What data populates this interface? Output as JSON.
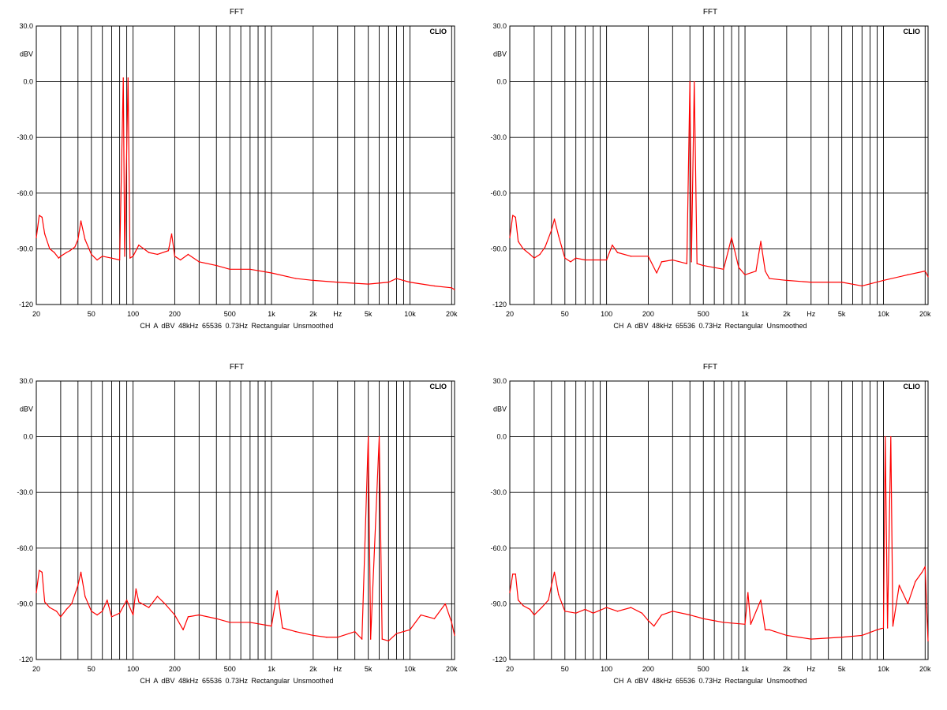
{
  "chart_data": [
    {
      "type": "line",
      "title": "FFT",
      "brand": "CLIO",
      "ylabel": "dBV",
      "xlabel": "Hz",
      "x_scale": "log",
      "xlim": [
        20,
        21000
      ],
      "ylim": [
        -120,
        30
      ],
      "y_ticks": [
        "30.0",
        "0.0",
        "-30.0",
        "-60.0",
        "-90.0",
        "-120"
      ],
      "x_ticks": [
        "20",
        "50",
        "100",
        "200",
        "500",
        "1k",
        "2k",
        "5k",
        "10k",
        "20k"
      ],
      "grid": true,
      "line_color": "#ff0000",
      "settings": [
        "CH A",
        "dBV",
        "48kHz",
        "65536",
        "0.73Hz",
        "Rectangular",
        "Unsmoothed"
      ],
      "series": [
        {
          "points": [
            [
              20,
              -84
            ],
            [
              21,
              -72
            ],
            [
              22,
              -73
            ],
            [
              23,
              -82
            ],
            [
              25,
              -90
            ],
            [
              27,
              -92
            ],
            [
              29,
              -95
            ],
            [
              30,
              -94
            ],
            [
              33,
              -92
            ],
            [
              35,
              -91
            ],
            [
              38,
              -89
            ],
            [
              40,
              -85
            ],
            [
              42,
              -75
            ],
            [
              45,
              -85
            ],
            [
              50,
              -93
            ],
            [
              55,
              -96
            ],
            [
              60,
              -94
            ],
            [
              70,
              -95
            ],
            [
              80,
              -96
            ],
            [
              85,
              2
            ],
            [
              87,
              -94
            ],
            [
              92,
              2
            ],
            [
              95,
              -95
            ],
            [
              100,
              -94
            ],
            [
              110,
              -88
            ],
            [
              130,
              -92
            ],
            [
              150,
              -93
            ],
            [
              180,
              -91
            ],
            [
              190,
              -82
            ],
            [
              200,
              -94
            ],
            [
              220,
              -96
            ],
            [
              250,
              -93
            ],
            [
              300,
              -97
            ],
            [
              400,
              -99
            ],
            [
              500,
              -101
            ],
            [
              700,
              -101
            ],
            [
              1000,
              -103
            ],
            [
              1500,
              -106
            ],
            [
              2000,
              -107
            ],
            [
              3000,
              -108
            ],
            [
              5000,
              -109
            ],
            [
              7000,
              -108
            ],
            [
              8000,
              -106
            ],
            [
              10000,
              -108
            ],
            [
              15000,
              -110
            ],
            [
              20000,
              -111
            ],
            [
              21000,
              -112
            ]
          ]
        }
      ]
    },
    {
      "type": "line",
      "title": "FFT",
      "brand": "CLIO",
      "ylabel": "dBV",
      "xlabel": "Hz",
      "x_scale": "log",
      "xlim": [
        20,
        21000
      ],
      "ylim": [
        -120,
        30
      ],
      "y_ticks": [
        "30.0",
        "0.0",
        "-30.0",
        "-60.0",
        "-90.0",
        "-120"
      ],
      "x_ticks": [
        "20",
        "50",
        "100",
        "200",
        "500",
        "1k",
        "2k",
        "5k",
        "10k",
        "20k"
      ],
      "grid": true,
      "line_color": "#ff0000",
      "settings": [
        "CH A",
        "dBV",
        "48kHz",
        "65536",
        "0.73Hz",
        "Rectangular",
        "Unsmoothed"
      ],
      "series": [
        {
          "points": [
            [
              20,
              -84
            ],
            [
              21,
              -72
            ],
            [
              22,
              -73
            ],
            [
              23,
              -86
            ],
            [
              25,
              -90
            ],
            [
              28,
              -93
            ],
            [
              30,
              -95
            ],
            [
              33,
              -93
            ],
            [
              36,
              -89
            ],
            [
              40,
              -80
            ],
            [
              42,
              -74
            ],
            [
              45,
              -83
            ],
            [
              50,
              -95
            ],
            [
              55,
              -97
            ],
            [
              60,
              -95
            ],
            [
              70,
              -96
            ],
            [
              80,
              -96
            ],
            [
              100,
              -96
            ],
            [
              110,
              -88
            ],
            [
              120,
              -92
            ],
            [
              150,
              -94
            ],
            [
              200,
              -94
            ],
            [
              230,
              -103
            ],
            [
              250,
              -97
            ],
            [
              300,
              -96
            ],
            [
              380,
              -98
            ],
            [
              400,
              0
            ],
            [
              410,
              -97
            ],
            [
              430,
              0
            ],
            [
              450,
              -98
            ],
            [
              500,
              -99
            ],
            [
              700,
              -101
            ],
            [
              800,
              -84
            ],
            [
              900,
              -100
            ],
            [
              1000,
              -104
            ],
            [
              1200,
              -102
            ],
            [
              1300,
              -86
            ],
            [
              1400,
              -102
            ],
            [
              1500,
              -106
            ],
            [
              2000,
              -107
            ],
            [
              3000,
              -108
            ],
            [
              5000,
              -108
            ],
            [
              7000,
              -110
            ],
            [
              10000,
              -107
            ],
            [
              15000,
              -104
            ],
            [
              20000,
              -102
            ],
            [
              21000,
              -105
            ]
          ]
        }
      ]
    },
    {
      "type": "line",
      "title": "FFT",
      "brand": "CLIO",
      "ylabel": "dBV",
      "xlabel": "Hz",
      "x_scale": "log",
      "xlim": [
        20,
        21000
      ],
      "ylim": [
        -120,
        30
      ],
      "y_ticks": [
        "30.0",
        "0.0",
        "-30.0",
        "-60.0",
        "-90.0",
        "-120"
      ],
      "x_ticks": [
        "20",
        "50",
        "100",
        "200",
        "500",
        "1k",
        "2k",
        "5k",
        "10k",
        "20k"
      ],
      "grid": true,
      "line_color": "#ff0000",
      "settings": [
        "CH A",
        "dBV",
        "48kHz",
        "65536",
        "0.73Hz",
        "Rectangular",
        "Unsmoothed"
      ],
      "series": [
        {
          "points": [
            [
              20,
              -84
            ],
            [
              21,
              -72
            ],
            [
              22,
              -73
            ],
            [
              23,
              -89
            ],
            [
              25,
              -92
            ],
            [
              28,
              -94
            ],
            [
              30,
              -97
            ],
            [
              33,
              -93
            ],
            [
              36,
              -90
            ],
            [
              40,
              -80
            ],
            [
              42,
              -73
            ],
            [
              45,
              -86
            ],
            [
              50,
              -94
            ],
            [
              55,
              -96
            ],
            [
              60,
              -94
            ],
            [
              65,
              -88
            ],
            [
              70,
              -97
            ],
            [
              80,
              -95
            ],
            [
              90,
              -88
            ],
            [
              100,
              -96
            ],
            [
              105,
              -82
            ],
            [
              110,
              -89
            ],
            [
              130,
              -92
            ],
            [
              150,
              -86
            ],
            [
              170,
              -90
            ],
            [
              200,
              -96
            ],
            [
              230,
              -104
            ],
            [
              250,
              -97
            ],
            [
              300,
              -96
            ],
            [
              400,
              -98
            ],
            [
              500,
              -100
            ],
            [
              700,
              -100
            ],
            [
              1000,
              -102
            ],
            [
              1100,
              -83
            ],
            [
              1200,
              -103
            ],
            [
              1500,
              -105
            ],
            [
              2000,
              -107
            ],
            [
              2500,
              -108
            ],
            [
              3000,
              -108
            ],
            [
              4000,
              -105
            ],
            [
              4500,
              -109
            ],
            [
              5000,
              0
            ],
            [
              5200,
              -109
            ],
            [
              6000,
              0
            ],
            [
              6300,
              -109
            ],
            [
              7000,
              -110
            ],
            [
              8000,
              -106
            ],
            [
              10000,
              -104
            ],
            [
              12000,
              -96
            ],
            [
              15000,
              -98
            ],
            [
              18000,
              -90
            ],
            [
              20000,
              -100
            ],
            [
              21000,
              -107
            ]
          ]
        }
      ]
    },
    {
      "type": "line",
      "title": "FFT",
      "brand": "CLIO",
      "ylabel": "dBV",
      "xlabel": "Hz",
      "x_scale": "log",
      "xlim": [
        20,
        21000
      ],
      "ylim": [
        -120,
        30
      ],
      "y_ticks": [
        "30.0",
        "0.0",
        "-30.0",
        "-60.0",
        "-90.0",
        "-120"
      ],
      "x_ticks": [
        "20",
        "50",
        "100",
        "200",
        "500",
        "1k",
        "2k",
        "5k",
        "10k",
        "20k"
      ],
      "grid": true,
      "line_color": "#ff0000",
      "settings": [
        "CH A",
        "dBV",
        "48kHz",
        "65536",
        "0.73Hz",
        "Rectangular",
        "Unsmoothed"
      ],
      "series": [
        {
          "points": [
            [
              20,
              -84
            ],
            [
              21,
              -74
            ],
            [
              22,
              -74
            ],
            [
              23,
              -88
            ],
            [
              25,
              -91
            ],
            [
              28,
              -93
            ],
            [
              30,
              -96
            ],
            [
              34,
              -92
            ],
            [
              38,
              -88
            ],
            [
              40,
              -80
            ],
            [
              42,
              -73
            ],
            [
              45,
              -85
            ],
            [
              50,
              -94
            ],
            [
              60,
              -95
            ],
            [
              70,
              -93
            ],
            [
              80,
              -95
            ],
            [
              100,
              -92
            ],
            [
              120,
              -94
            ],
            [
              150,
              -92
            ],
            [
              180,
              -95
            ],
            [
              200,
              -99
            ],
            [
              220,
              -102
            ],
            [
              250,
              -96
            ],
            [
              300,
              -94
            ],
            [
              400,
              -96
            ],
            [
              500,
              -98
            ],
            [
              700,
              -100
            ],
            [
              1000,
              -101
            ],
            [
              1050,
              -84
            ],
            [
              1100,
              -101
            ],
            [
              1300,
              -88
            ],
            [
              1400,
              -104
            ],
            [
              1500,
              -104
            ],
            [
              2000,
              -107
            ],
            [
              3000,
              -109
            ],
            [
              5000,
              -108
            ],
            [
              7000,
              -107
            ],
            [
              9000,
              -104
            ],
            [
              10000,
              -103
            ],
            [
              10300,
              0
            ],
            [
              10700,
              -103
            ],
            [
              11300,
              0
            ],
            [
              11700,
              -102
            ],
            [
              13000,
              -80
            ],
            [
              15000,
              -90
            ],
            [
              17000,
              -78
            ],
            [
              19000,
              -73
            ],
            [
              20000,
              -70
            ],
            [
              20500,
              -92
            ],
            [
              21000,
              -110
            ]
          ]
        }
      ]
    }
  ]
}
